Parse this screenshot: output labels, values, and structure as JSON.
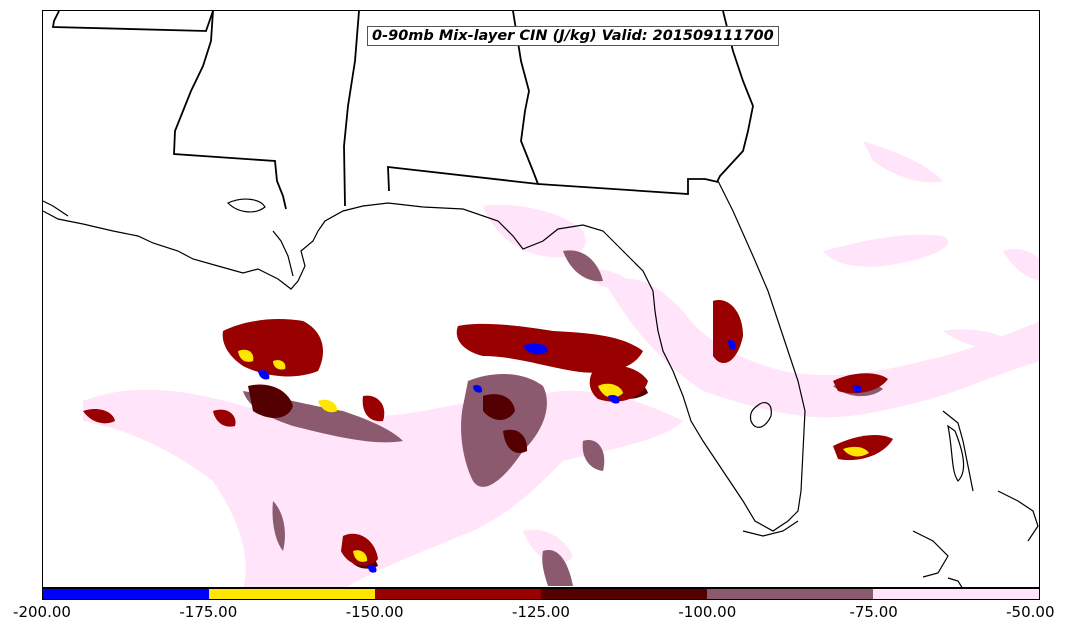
{
  "title": "0-90mb Mix-layer CIN (J/kg) Valid: 201509111700",
  "colorbar": {
    "bins": [
      {
        "from": -200,
        "to": -175,
        "color": "#0000ff"
      },
      {
        "from": -175,
        "to": -150,
        "color": "#ffe600"
      },
      {
        "from": -150,
        "to": -125,
        "color": "#990000"
      },
      {
        "from": -125,
        "to": -100,
        "color": "#550000"
      },
      {
        "from": -100,
        "to": -75,
        "color": "#8c5a6e"
      },
      {
        "from": -75,
        "to": -50,
        "color": "#ffe4fa"
      }
    ],
    "tick_labels": [
      "-200.00",
      "-175.00",
      "-150.00",
      "-125.00",
      "-100.00",
      "-75.00",
      "-50.00"
    ]
  },
  "colors": {
    "boundary": "#000000",
    "background": "#ffffff"
  }
}
